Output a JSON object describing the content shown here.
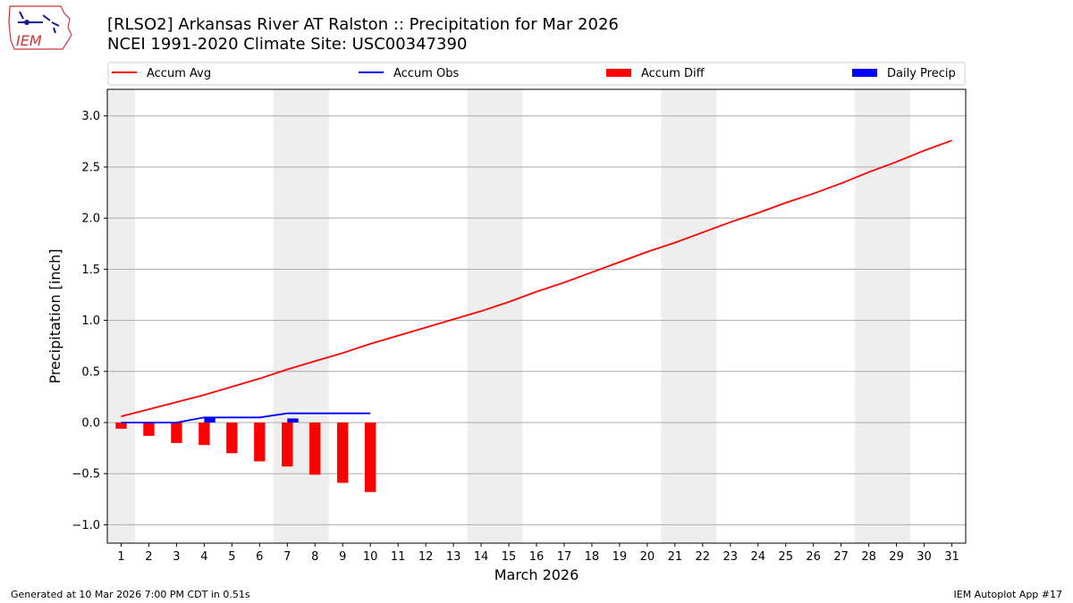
{
  "header": {
    "title_line1": "[RLSO2] Arkansas River  AT Ralston :: Precipitation for Mar 2026",
    "title_line2": "NCEI 1991-2020 Climate Site: USC00347390"
  },
  "logo": {
    "text": "IEM",
    "icon": "iem-iowa-map-logo"
  },
  "footer": {
    "left": "Generated at 10 Mar 2026 7:00 PM CDT in 0.51s",
    "right": "IEM Autoplot App #17"
  },
  "colors": {
    "accum_avg": "#ff0000",
    "accum_obs": "#0000ff",
    "accum_diff": "#ff0000",
    "daily_precip": "#0000ff",
    "weekend_shade": "#eeeeee",
    "grid": "#aaaaaa"
  },
  "chart_data": {
    "type": "line",
    "xlabel": "March 2026",
    "ylabel": "Precipitation [inch]",
    "xlim": [
      0.5,
      31.5
    ],
    "ylim": [
      -1.18,
      3.26
    ],
    "yticks": [
      -1.0,
      -0.5,
      0.0,
      0.5,
      1.0,
      1.5,
      2.0,
      2.5,
      3.0
    ],
    "ytick_labels": [
      "−1.0",
      "−0.5",
      "0.0",
      "0.5",
      "1.0",
      "1.5",
      "2.0",
      "2.5",
      "3.0"
    ],
    "xtick_labels": [
      "1",
      "2",
      "3",
      "4",
      "5",
      "6",
      "7",
      "8",
      "9",
      "10",
      "11",
      "12",
      "13",
      "14",
      "15",
      "16",
      "17",
      "18",
      "19",
      "20",
      "21",
      "22",
      "23",
      "24",
      "25",
      "26",
      "27",
      "28",
      "29",
      "30",
      "31"
    ],
    "grid": "horizontal",
    "legend": {
      "placement": "top",
      "items": [
        {
          "label": "Accum Avg",
          "kind": "line",
          "color": "#ff0000"
        },
        {
          "label": "Accum Obs",
          "kind": "line",
          "color": "#0000ff"
        },
        {
          "label": "Accum Diff",
          "kind": "bar",
          "color": "#ff0000"
        },
        {
          "label": "Daily Precip",
          "kind": "bar",
          "color": "#0000ff"
        }
      ]
    },
    "weekend_spans": [
      [
        0.5,
        1.5
      ],
      [
        6.5,
        8.5
      ],
      [
        13.5,
        15.5
      ],
      [
        20.5,
        22.5
      ],
      [
        27.5,
        29.5
      ]
    ],
    "series": [
      {
        "name": "Accum Avg",
        "type": "line",
        "x": [
          1,
          2,
          3,
          4,
          5,
          6,
          7,
          8,
          9,
          10,
          11,
          12,
          13,
          14,
          15,
          16,
          17,
          18,
          19,
          20,
          21,
          22,
          23,
          24,
          25,
          26,
          27,
          28,
          29,
          30,
          31
        ],
        "values": [
          0.06,
          0.13,
          0.2,
          0.27,
          0.35,
          0.43,
          0.52,
          0.6,
          0.68,
          0.77,
          0.85,
          0.93,
          1.01,
          1.09,
          1.18,
          1.28,
          1.37,
          1.47,
          1.57,
          1.67,
          1.76,
          1.86,
          1.96,
          2.05,
          2.15,
          2.24,
          2.34,
          2.45,
          2.55,
          2.66,
          2.76
        ]
      },
      {
        "name": "Accum Obs",
        "type": "line",
        "x": [
          1,
          2,
          3,
          4,
          5,
          6,
          7,
          8,
          9,
          10
        ],
        "values": [
          0.0,
          0.0,
          0.0,
          0.05,
          0.05,
          0.05,
          0.09,
          0.09,
          0.09,
          0.09
        ]
      },
      {
        "name": "Accum Diff",
        "type": "bar",
        "x": [
          1,
          2,
          3,
          4,
          5,
          6,
          7,
          8,
          9,
          10
        ],
        "values": [
          -0.06,
          -0.13,
          -0.2,
          -0.22,
          -0.3,
          -0.38,
          -0.43,
          -0.51,
          -0.59,
          -0.68
        ]
      },
      {
        "name": "Daily Precip",
        "type": "bar",
        "x": [
          1,
          2,
          3,
          4,
          5,
          6,
          7,
          8,
          9,
          10
        ],
        "values": [
          0.0,
          0.0,
          0.0,
          0.05,
          0.0,
          0.0,
          0.04,
          0.0,
          0.0,
          0.0
        ]
      }
    ]
  }
}
